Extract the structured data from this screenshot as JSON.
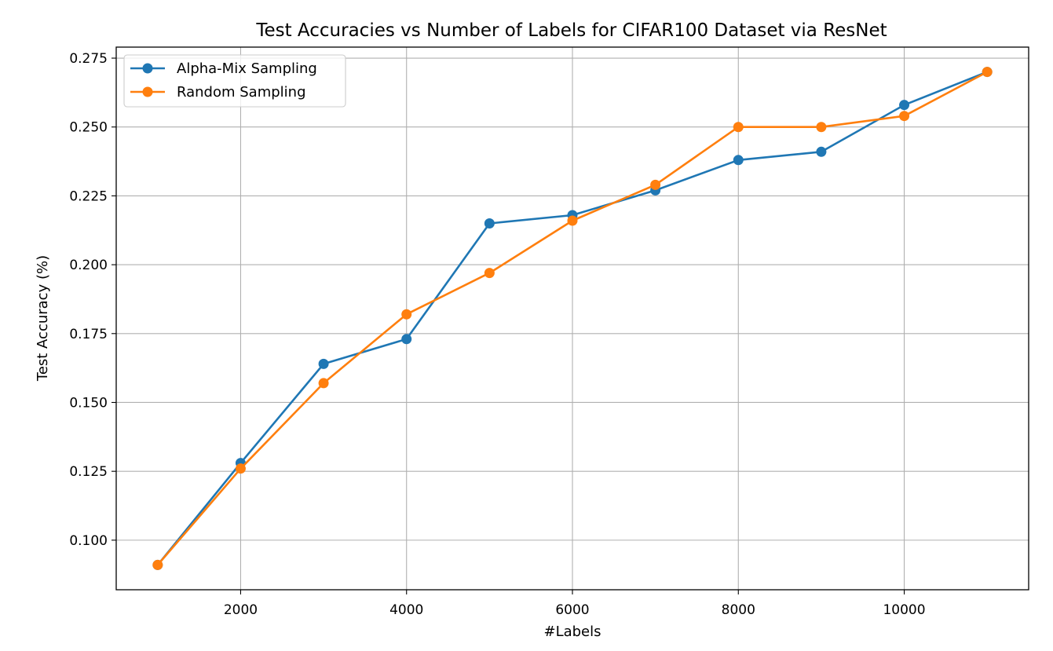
{
  "chart_data": {
    "type": "line",
    "title": "Test Accuracies vs Number of Labels for CIFAR100 Dataset via ResNet",
    "xlabel": "#Labels",
    "ylabel": "Test Accuracy (%)",
    "x": [
      1000,
      2000,
      3000,
      4000,
      5000,
      6000,
      7000,
      8000,
      9000,
      10000,
      11000
    ],
    "xlim": [
      500,
      11500
    ],
    "ylim": [
      0.082,
      0.279
    ],
    "xticks": [
      2000,
      4000,
      6000,
      8000,
      10000
    ],
    "xtick_labels": [
      "2000",
      "4000",
      "6000",
      "8000",
      "10000"
    ],
    "yticks": [
      0.1,
      0.125,
      0.15,
      0.175,
      0.2,
      0.225,
      0.25,
      0.275
    ],
    "ytick_labels": [
      "0.100",
      "0.125",
      "0.150",
      "0.175",
      "0.200",
      "0.225",
      "0.250",
      "0.275"
    ],
    "grid": true,
    "legend_position": "top-left",
    "series": [
      {
        "name": "Alpha-Mix Sampling",
        "color": "#1f77b4",
        "values": [
          0.091,
          0.128,
          0.164,
          0.173,
          0.215,
          0.218,
          0.227,
          0.238,
          0.241,
          0.258,
          0.27
        ]
      },
      {
        "name": "Random Sampling",
        "color": "#ff7f0e",
        "values": [
          0.091,
          0.126,
          0.157,
          0.182,
          0.197,
          0.216,
          0.229,
          0.25,
          0.25,
          0.254,
          0.27
        ]
      }
    ]
  }
}
